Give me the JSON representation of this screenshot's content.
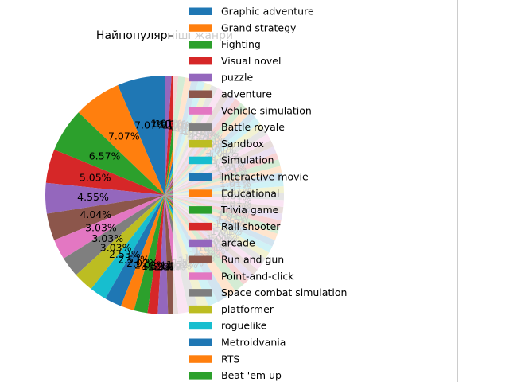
{
  "chart_data": {
    "type": "pie",
    "title": "Найпопулярніші жанри",
    "label_format": "%.2f%%",
    "slices": [
      {
        "label": "Graphic adventure",
        "value": 7.07,
        "color": "#1f77b4"
      },
      {
        "label": "Grand strategy",
        "value": 7.07,
        "color": "#ff7f0e"
      },
      {
        "label": "Fighting",
        "value": 6.57,
        "color": "#2ca02c"
      },
      {
        "label": "Visual novel",
        "value": 5.05,
        "color": "#d62728"
      },
      {
        "label": "puzzle",
        "value": 4.55,
        "color": "#9467bd"
      },
      {
        "label": "adventure",
        "value": 4.04,
        "color": "#8c564b"
      },
      {
        "label": "Vehicle simulation",
        "value": 3.03,
        "color": "#e377c2"
      },
      {
        "label": "Battle royale",
        "value": 3.03,
        "color": "#7f7f7f"
      },
      {
        "label": "Sandbox",
        "value": 3.03,
        "color": "#bcbd22"
      },
      {
        "label": "Simulation",
        "value": 2.53,
        "color": "#17becf"
      },
      {
        "label": "Interactive movie",
        "value": 2.53,
        "color": "#1f77b4"
      },
      {
        "label": "Educational",
        "value": 2.02,
        "color": "#ff7f0e"
      },
      {
        "label": "Trivia game",
        "value": 2.02,
        "color": "#2ca02c"
      },
      {
        "label": "Rail shooter",
        "value": 1.52,
        "color": "#d62728"
      },
      {
        "label": "arcade",
        "value": 1.52,
        "color": "#9467bd"
      },
      {
        "label": "Run and gun",
        "value": 1.52,
        "color": "#8c564b"
      },
      {
        "label": "Point-and-click",
        "value": 1.52,
        "color": "#e377c2"
      },
      {
        "label": "Space combat simulation",
        "value": 1.52,
        "color": "#7f7f7f"
      },
      {
        "label": "platformer",
        "value": 1.52,
        "color": "#bcbd22"
      },
      {
        "label": "roguelike",
        "value": 1.52,
        "color": "#17becf"
      },
      {
        "label": "Metroidvania",
        "value": 1.52,
        "color": "#1f77b4"
      },
      {
        "label": "RTS",
        "value": 1.52,
        "color": "#ff7f0e"
      },
      {
        "label": "Beat 'em up",
        "value": 1.52,
        "color": "#2ca02c"
      },
      {
        "value": 1.01,
        "color": "#d62728"
      },
      {
        "value": 1.01,
        "color": "#9467bd"
      },
      {
        "value": 1.01,
        "color": "#8c564b"
      },
      {
        "value": 1.01,
        "color": "#e377c2"
      },
      {
        "value": 1.01,
        "color": "#7f7f7f"
      },
      {
        "value": 1.01,
        "color": "#bcbd22"
      },
      {
        "value": 1.01,
        "color": "#17becf"
      },
      {
        "value": 1.01,
        "color": "#1f77b4"
      },
      {
        "value": 1.01,
        "color": "#ff7f0e"
      },
      {
        "value": 1.01,
        "color": "#2ca02c"
      },
      {
        "value": 1.01,
        "color": "#d62728"
      },
      {
        "value": 1.01,
        "color": "#9467bd"
      },
      {
        "value": 1.01,
        "color": "#8c564b"
      },
      {
        "value": 1.01,
        "color": "#e377c2"
      },
      {
        "value": 1.01,
        "color": "#7f7f7f"
      },
      {
        "value": 1.01,
        "color": "#bcbd22"
      },
      {
        "value": 1.01,
        "color": "#17becf"
      },
      {
        "value": 1.01,
        "color": "#1f77b4"
      },
      {
        "value": 1.01,
        "color": "#ff7f0e"
      },
      {
        "value": 1.01,
        "color": "#2ca02c"
      },
      {
        "value": 1.01,
        "color": "#d62728"
      },
      {
        "value": 1.01,
        "color": "#9467bd"
      },
      {
        "value": 1.01,
        "color": "#8c564b"
      },
      {
        "value": 1.01,
        "color": "#e377c2"
      },
      {
        "value": 1.01,
        "color": "#7f7f7f"
      },
      {
        "value": 1.01,
        "color": "#bcbd22"
      },
      {
        "value": 1.01,
        "color": "#17becf"
      },
      {
        "value": 1.01,
        "color": "#1f77b4"
      },
      {
        "value": 1.01,
        "color": "#ff7f0e"
      },
      {
        "value": 1.01,
        "color": "#2ca02c"
      },
      {
        "value": 1.01,
        "color": "#d62728"
      },
      {
        "value": 1.01,
        "color": "#9467bd"
      },
      {
        "value": 1.01,
        "color": "#8c564b"
      },
      {
        "value": 1.01,
        "color": "#e377c2"
      },
      {
        "value": 1.01,
        "color": "#7f7f7f"
      },
      {
        "value": 1.01,
        "color": "#bcbd22"
      },
      {
        "value": 1.01,
        "color": "#17becf"
      },
      {
        "value": 1.01,
        "color": "#1f77b4"
      },
      {
        "value": 1.01,
        "color": "#ff7f0e"
      },
      {
        "value": 1.01,
        "color": "#2ca02c"
      },
      {
        "value": 1.01,
        "color": "#d62728"
      },
      {
        "value": 1.01,
        "color": "#9467bd"
      }
    ],
    "start_angle": 90,
    "direction": "counterclockwise",
    "legend": "top-right, overlapping the pie"
  }
}
